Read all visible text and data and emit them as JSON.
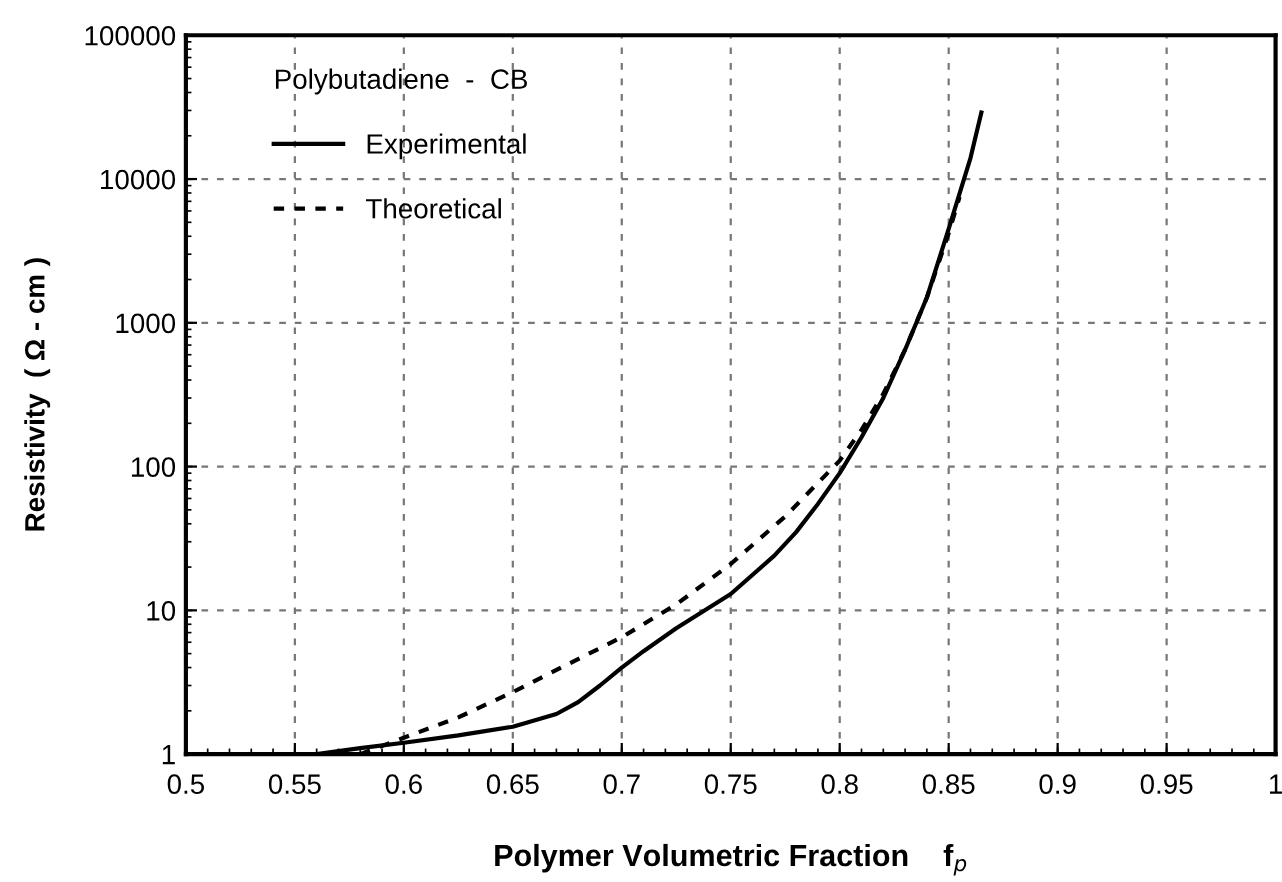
{
  "chart_data": {
    "type": "line",
    "xlabel": "Polymer Volumetric Fraction    f$_{p}$",
    "ylabel": "Resistivity  ( Ω - cm )",
    "legend_title": "Polybutadiene  -  CB",
    "series": [
      {
        "name": "Experimental",
        "color": "#000000",
        "line_style": "solid",
        "x": [
          0.56,
          0.58,
          0.6,
          0.625,
          0.65,
          0.67,
          0.68,
          0.69,
          0.7,
          0.71,
          0.725,
          0.75,
          0.77,
          0.78,
          0.79,
          0.8,
          0.81,
          0.82,
          0.83,
          0.84,
          0.85,
          0.86,
          0.865
        ],
        "values": [
          1,
          1.1,
          1.2,
          1.35,
          1.55,
          1.9,
          2.3,
          3.0,
          4.0,
          5.2,
          7.5,
          13,
          24,
          35,
          55,
          90,
          160,
          300,
          650,
          1500,
          4500,
          14000,
          29000
        ]
      },
      {
        "name": "Theoretical",
        "color": "#000000",
        "line_style": "dashed",
        "x": [
          0.58,
          0.6,
          0.625,
          0.65,
          0.675,
          0.7,
          0.725,
          0.75,
          0.775,
          0.8,
          0.81,
          0.82,
          0.83,
          0.84,
          0.85,
          0.855
        ],
        "values": [
          1,
          1.3,
          1.8,
          2.7,
          4.2,
          6.5,
          11,
          21,
          45,
          110,
          180,
          320,
          650,
          1500,
          4200,
          7500
        ]
      }
    ],
    "xlim": [
      0.5,
      1
    ],
    "xticks": [
      {
        "value": 0.5,
        "label": "0.5"
      },
      0.55,
      0.6,
      0.65,
      0.7,
      0.75,
      0.8,
      0.85,
      0.9,
      0.95,
      {
        "value": 1,
        "label": "1"
      }
    ],
    "ylim": [
      1,
      100000
    ],
    "yticks": [
      1,
      10,
      100,
      1000,
      10000,
      100000
    ],
    "log": true,
    "grid": true,
    "legend": "top left"
  }
}
